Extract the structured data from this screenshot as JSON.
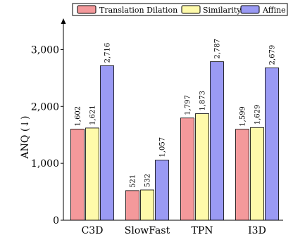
{
  "chart_data": {
    "type": "bar",
    "categories": [
      "C3D",
      "SlowFast",
      "TPN",
      "I3D"
    ],
    "series": [
      {
        "name": "Translation Dilation",
        "values": [
          1602,
          521,
          1797,
          1599
        ],
        "color": "#f4999b"
      },
      {
        "name": "Similarity",
        "values": [
          1621,
          532,
          1873,
          1629
        ],
        "color": "#fefaaa"
      },
      {
        "name": "Affine",
        "values": [
          2716,
          1057,
          2787,
          2679
        ],
        "color": "#9a9af4"
      }
    ],
    "value_labels": [
      [
        "1,602",
        "521",
        "1,797",
        "1,599"
      ],
      [
        "1,621",
        "532",
        "1,873",
        "1,629"
      ],
      [
        "2,716",
        "1,057",
        "2,787",
        "2,679"
      ]
    ],
    "title": "",
    "xlabel": "",
    "ylabel": "ANQ (↓)",
    "ylim": [
      0,
      3500
    ],
    "yticks": [
      0,
      1000,
      2000,
      3000
    ],
    "ytick_labels": [
      "0",
      "1,000",
      "2,000",
      "3,000"
    ],
    "grid": false,
    "legend": "top"
  }
}
